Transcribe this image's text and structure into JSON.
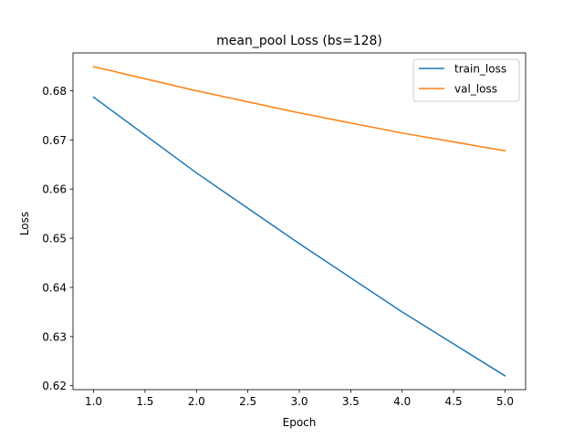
{
  "chart_data": {
    "type": "line",
    "title": "mean_pool Loss (bs=128)",
    "xlabel": "Epoch",
    "ylabel": "Loss",
    "x": [
      1,
      2,
      3,
      4,
      5
    ],
    "series": [
      {
        "name": "train_loss",
        "values": [
          0.6787,
          0.6633,
          0.6489,
          0.635,
          0.622
        ],
        "color": "#1f77b4"
      },
      {
        "name": "val_loss",
        "values": [
          0.6849,
          0.68,
          0.6755,
          0.6714,
          0.6678
        ],
        "color": "#ff7f0e"
      }
    ],
    "xlim": [
      0.8,
      5.2
    ],
    "ylim": [
      0.6192,
      0.6877
    ],
    "xticks": [
      1.0,
      1.5,
      2.0,
      2.5,
      3.0,
      3.5,
      4.0,
      4.5,
      5.0
    ],
    "xtick_labels": [
      "1.0",
      "1.5",
      "2.0",
      "2.5",
      "3.0",
      "3.5",
      "4.0",
      "4.5",
      "5.0"
    ],
    "yticks": [
      0.62,
      0.63,
      0.64,
      0.65,
      0.66,
      0.67,
      0.68
    ],
    "ytick_labels": [
      "0.62",
      "0.63",
      "0.64",
      "0.65",
      "0.66",
      "0.67",
      "0.68"
    ],
    "grid": false,
    "legend_position": "top-right"
  }
}
